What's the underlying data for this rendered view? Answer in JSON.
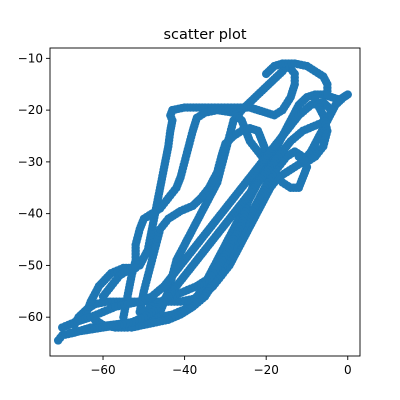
{
  "chart_data": {
    "type": "scatter",
    "title": "scatter plot",
    "xlabel": "",
    "ylabel": "",
    "xlim": [
      -73,
      3
    ],
    "ylim": [
      -67.5,
      -8
    ],
    "xticks": [
      -60,
      -40,
      -20,
      0
    ],
    "yticks": [
      -60,
      -50,
      -40,
      -30,
      -20,
      -10
    ],
    "xtick_labels": [
      "−60",
      "−40",
      "−20",
      "0"
    ],
    "ytick_labels": [
      "−60",
      "−50",
      "−40",
      "−30",
      "−20",
      "−10"
    ],
    "grid": false,
    "marker_color": "#1f77b4",
    "loops": [
      [
        [
          -71,
          -64.5
        ],
        [
          -70,
          -63.5
        ],
        [
          -67,
          -63
        ],
        [
          -63,
          -62
        ],
        [
          -58,
          -61.5
        ],
        [
          -53,
          -61
        ],
        [
          -49,
          -60.5
        ],
        [
          -46,
          -60
        ],
        [
          -43,
          -59.5
        ],
        [
          -40,
          -58.5
        ],
        [
          -38,
          -57
        ],
        [
          -36,
          -55
        ],
        [
          -34,
          -52
        ],
        [
          -32,
          -49
        ],
        [
          -30,
          -46
        ],
        [
          -28,
          -43
        ],
        [
          -26,
          -40
        ],
        [
          -24,
          -37
        ],
        [
          -22,
          -34
        ],
        [
          -20,
          -31
        ],
        [
          -18,
          -28
        ],
        [
          -16,
          -25
        ],
        [
          -14,
          -22
        ],
        [
          -12,
          -19
        ],
        [
          -10,
          -17.5
        ],
        [
          -8,
          -17
        ],
        [
          -6,
          -17
        ],
        [
          -4,
          -17.5
        ],
        [
          -2,
          -18
        ],
        [
          -1,
          -17.5
        ],
        [
          0,
          -17
        ],
        [
          -1,
          -17.5
        ],
        [
          -3,
          -19
        ],
        [
          -5,
          -22
        ],
        [
          -7,
          -25
        ],
        [
          -9,
          -28
        ],
        [
          -11,
          -30
        ],
        [
          -13,
          -31
        ],
        [
          -15,
          -32
        ],
        [
          -17,
          -33
        ],
        [
          -19,
          -35
        ],
        [
          -21,
          -38
        ],
        [
          -23,
          -41
        ],
        [
          -25,
          -44
        ],
        [
          -27,
          -47
        ],
        [
          -29,
          -50
        ],
        [
          -31,
          -52
        ],
        [
          -33,
          -54
        ],
        [
          -35,
          -55.5
        ],
        [
          -38,
          -56.5
        ],
        [
          -41,
          -57
        ],
        [
          -44,
          -57
        ],
        [
          -47,
          -57
        ],
        [
          -50,
          -57
        ],
        [
          -53,
          -57
        ],
        [
          -56,
          -57
        ],
        [
          -59,
          -57
        ],
        [
          -62,
          -57.5
        ],
        [
          -64,
          -58.5
        ],
        [
          -66,
          -60
        ],
        [
          -67,
          -61.5
        ]
      ],
      [
        [
          -64,
          -59
        ],
        [
          -63,
          -57
        ],
        [
          -61,
          -54
        ],
        [
          -58,
          -51.5
        ],
        [
          -55,
          -50.5
        ],
        [
          -53,
          -50.5
        ],
        [
          -51,
          -50
        ],
        [
          -49,
          -47
        ],
        [
          -48,
          -43
        ],
        [
          -47,
          -39
        ],
        [
          -46,
          -35
        ],
        [
          -45,
          -31
        ],
        [
          -44,
          -27
        ],
        [
          -43.5,
          -24
        ],
        [
          -43,
          -22
        ],
        [
          -43.5,
          -21
        ],
        [
          -43,
          -20
        ],
        [
          -40,
          -19.5
        ],
        [
          -35,
          -19.5
        ],
        [
          -31,
          -19.5
        ],
        [
          -27,
          -19.5
        ],
        [
          -24,
          -19.5
        ],
        [
          -22,
          -20
        ],
        [
          -20,
          -20.5
        ],
        [
          -18,
          -21
        ],
        [
          -16,
          -20
        ],
        [
          -14,
          -17.5
        ],
        [
          -13,
          -15
        ],
        [
          -13,
          -13
        ],
        [
          -14,
          -12
        ],
        [
          -15,
          -11.5
        ],
        [
          -16,
          -12.5
        ],
        [
          -18,
          -14
        ],
        [
          -20,
          -15.5
        ],
        [
          -22,
          -17
        ],
        [
          -24,
          -18.5
        ],
        [
          -26,
          -20
        ],
        [
          -28,
          -22
        ],
        [
          -29,
          -25
        ],
        [
          -30,
          -28
        ],
        [
          -31,
          -31
        ],
        [
          -32,
          -34
        ],
        [
          -34,
          -37
        ],
        [
          -36,
          -40
        ],
        [
          -38,
          -43
        ],
        [
          -40,
          -46
        ],
        [
          -42,
          -49
        ],
        [
          -43,
          -52
        ],
        [
          -44,
          -55
        ],
        [
          -45,
          -57
        ],
        [
          -46,
          -59
        ],
        [
          -48,
          -60.5
        ],
        [
          -51,
          -61.5
        ],
        [
          -54,
          -62
        ],
        [
          -57,
          -62
        ],
        [
          -60,
          -61.5
        ],
        [
          -62,
          -60.5
        ]
      ],
      [
        [
          -55,
          -60
        ],
        [
          -54,
          -56
        ],
        [
          -53,
          -52
        ],
        [
          -52,
          -49
        ],
        [
          -52,
          -46
        ],
        [
          -51,
          -43
        ],
        [
          -50,
          -41
        ],
        [
          -48,
          -40
        ],
        [
          -46,
          -39
        ],
        [
          -44,
          -37
        ],
        [
          -42,
          -35
        ],
        [
          -41,
          -33
        ],
        [
          -40,
          -30
        ],
        [
          -39,
          -27
        ],
        [
          -38,
          -24
        ],
        [
          -37,
          -21.5
        ],
        [
          -35,
          -20.5
        ],
        [
          -32,
          -20
        ],
        [
          -28,
          -20.5
        ],
        [
          -26,
          -22
        ],
        [
          -25,
          -24
        ],
        [
          -24,
          -26
        ],
        [
          -22,
          -28
        ],
        [
          -20,
          -30
        ],
        [
          -18,
          -32
        ],
        [
          -16,
          -34
        ],
        [
          -14,
          -35
        ],
        [
          -12,
          -35
        ],
        [
          -11,
          -33
        ],
        [
          -10,
          -31
        ],
        [
          -11,
          -29
        ],
        [
          -13,
          -28
        ],
        [
          -15,
          -29
        ],
        [
          -17,
          -31
        ],
        [
          -19,
          -33
        ],
        [
          -21,
          -36
        ],
        [
          -23,
          -39
        ],
        [
          -25,
          -42
        ],
        [
          -27,
          -45
        ],
        [
          -29,
          -48
        ],
        [
          -31,
          -51
        ],
        [
          -33,
          -53.5
        ],
        [
          -35,
          -56
        ],
        [
          -38,
          -58
        ],
        [
          -41,
          -59.5
        ],
        [
          -44,
          -60.5
        ],
        [
          -47,
          -61
        ],
        [
          -50,
          -61.5
        ],
        [
          -53,
          -62
        ]
      ],
      [
        [
          -51,
          -59
        ],
        [
          -50,
          -55
        ],
        [
          -49,
          -52
        ],
        [
          -48,
          -49
        ],
        [
          -47,
          -46
        ],
        [
          -46,
          -43
        ],
        [
          -44,
          -41
        ],
        [
          -41,
          -39.5
        ],
        [
          -38,
          -38.5
        ],
        [
          -36,
          -37
        ],
        [
          -34,
          -35
        ],
        [
          -32,
          -32
        ],
        [
          -31,
          -29
        ],
        [
          -30,
          -26.5
        ],
        [
          -28,
          -25
        ],
        [
          -26,
          -24
        ],
        [
          -24,
          -23.5
        ],
        [
          -22,
          -24
        ],
        [
          -21,
          -26
        ],
        [
          -20,
          -28
        ],
        [
          -21,
          -30
        ],
        [
          -22,
          -32
        ],
        [
          -23,
          -34
        ],
        [
          -24,
          -36.5
        ],
        [
          -25,
          -39
        ],
        [
          -26,
          -42
        ],
        [
          -28,
          -45
        ],
        [
          -30,
          -48
        ],
        [
          -32,
          -50.5
        ],
        [
          -34,
          -52.5
        ],
        [
          -37,
          -54
        ],
        [
          -40,
          -55
        ],
        [
          -43,
          -56
        ],
        [
          -46,
          -57
        ],
        [
          -48,
          -58
        ],
        [
          -50,
          -59
        ]
      ],
      [
        [
          -70,
          -62
        ],
        [
          -67,
          -61
        ],
        [
          -63,
          -60
        ],
        [
          -60,
          -59
        ],
        [
          -57,
          -58
        ],
        [
          -54,
          -57.5
        ],
        [
          -51,
          -57
        ],
        [
          -48,
          -56
        ],
        [
          -45,
          -54
        ],
        [
          -42,
          -51
        ],
        [
          -39,
          -48
        ],
        [
          -36,
          -45
        ],
        [
          -33,
          -42
        ],
        [
          -30,
          -39
        ],
        [
          -27,
          -36
        ],
        [
          -24,
          -33
        ],
        [
          -21,
          -30
        ],
        [
          -18,
          -27
        ],
        [
          -15,
          -24
        ],
        [
          -12,
          -21
        ],
        [
          -9,
          -19
        ],
        [
          -6,
          -18.5
        ],
        [
          -4,
          -20
        ],
        [
          -5,
          -22
        ],
        [
          -8,
          -23
        ],
        [
          -11,
          -24
        ],
        [
          -14,
          -26
        ],
        [
          -17,
          -29
        ],
        [
          -20,
          -32
        ],
        [
          -23,
          -35
        ],
        [
          -26,
          -38
        ],
        [
          -29,
          -41
        ],
        [
          -32,
          -44
        ],
        [
          -35,
          -47
        ],
        [
          -38,
          -50
        ],
        [
          -41,
          -53
        ],
        [
          -44,
          -56
        ],
        [
          -47,
          -58.5
        ],
        [
          -50,
          -60
        ],
        [
          -53,
          -61
        ],
        [
          -56,
          -61.5
        ],
        [
          -60,
          -62
        ],
        [
          -64,
          -62.5
        ],
        [
          -68,
          -63
        ]
      ],
      [
        [
          -20,
          -13
        ],
        [
          -18,
          -11.5
        ],
        [
          -16,
          -11
        ],
        [
          -13,
          -11
        ],
        [
          -10,
          -11.5
        ],
        [
          -8,
          -12.5
        ],
        [
          -6,
          -13.5
        ],
        [
          -5,
          -15
        ],
        [
          -5,
          -17
        ]
      ],
      [
        [
          -8,
          -18
        ],
        [
          -6,
          -21
        ],
        [
          -5,
          -24
        ],
        [
          -6,
          -27
        ],
        [
          -8,
          -29
        ],
        [
          -10,
          -30
        ],
        [
          -12,
          -29
        ]
      ],
      [
        [
          -60,
          -56
        ],
        [
          -58,
          -54
        ],
        [
          -56,
          -52
        ],
        [
          -54,
          -51
        ],
        [
          -52,
          -50.5
        ]
      ]
    ]
  }
}
